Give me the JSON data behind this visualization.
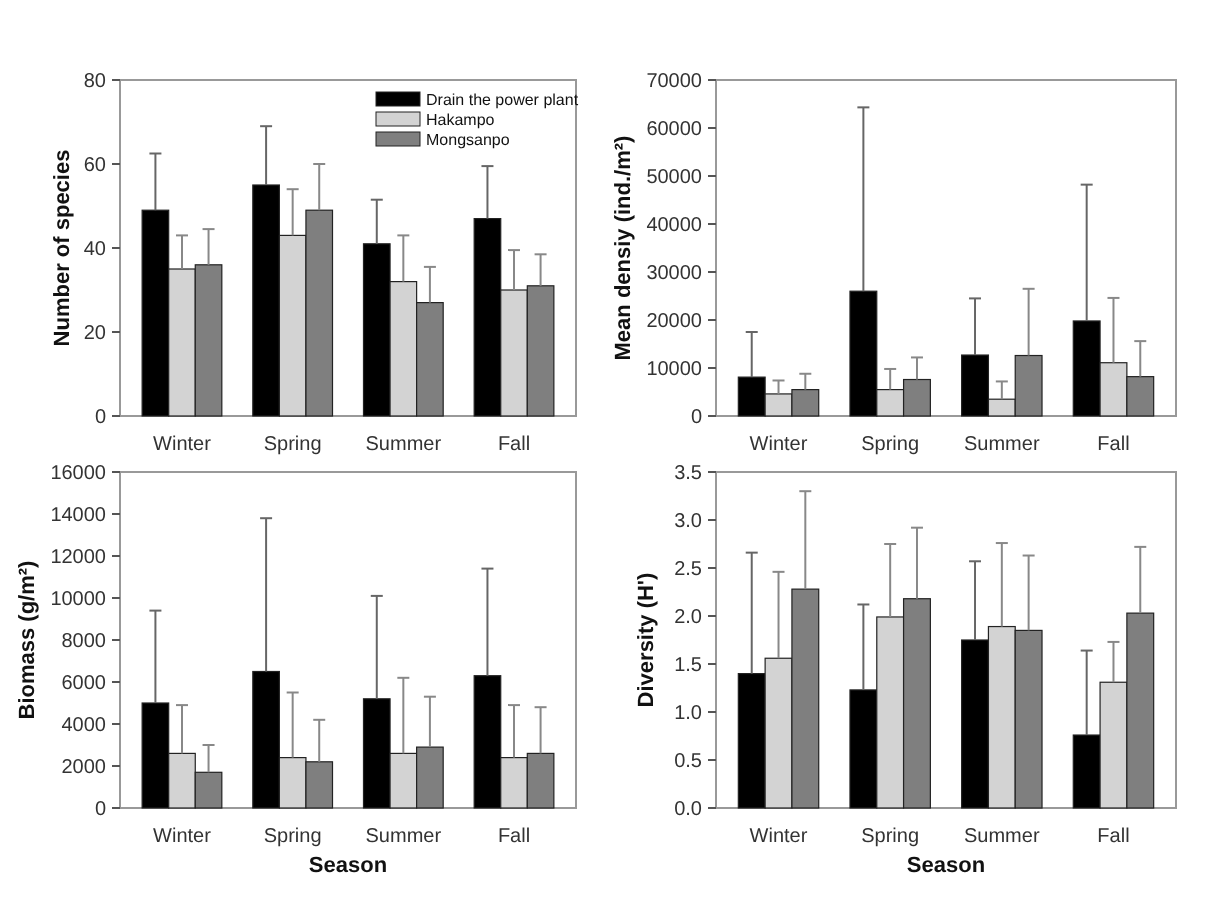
{
  "chart_data": [
    {
      "type": "bar",
      "ylabel": "Number of species",
      "categories": [
        "Winter",
        "Spring",
        "Summer",
        "Fall"
      ],
      "ylim": [
        0,
        80
      ],
      "yticks": [
        0,
        20,
        40,
        60,
        80
      ],
      "legend": "top right",
      "grid": false,
      "series": [
        {
          "name": "Drain the power plant",
          "color": "#000000",
          "values": [
            49,
            55,
            41,
            47
          ],
          "errors": [
            [
              49,
              62.5
            ],
            [
              55,
              69
            ],
            [
              41,
              51.5
            ],
            [
              47,
              59.5
            ]
          ]
        },
        {
          "name": "Hakampo",
          "color": "#d3d3d3",
          "values": [
            35,
            43,
            32,
            30
          ],
          "errors": [
            [
              35,
              43
            ],
            [
              43,
              54
            ],
            [
              32,
              43
            ],
            [
              30,
              39.5
            ]
          ]
        },
        {
          "name": "Mongsanpo",
          "color": "#7f7f7f",
          "values": [
            36,
            49,
            27,
            31
          ],
          "errors": [
            [
              36,
              44.5
            ],
            [
              49,
              60
            ],
            [
              27,
              35.5
            ],
            [
              31,
              38.5
            ]
          ]
        }
      ]
    },
    {
      "type": "bar",
      "ylabel": "Mean densiy (ind./m²)",
      "categories": [
        "Winter",
        "Spring",
        "Summer",
        "Fall"
      ],
      "ylim": [
        0,
        70000
      ],
      "yticks": [
        0,
        10000,
        20000,
        30000,
        40000,
        50000,
        60000,
        70000
      ],
      "legend": false,
      "grid": false,
      "series": [
        {
          "color": "#000000",
          "values": [
            8100,
            26000,
            12700,
            19800
          ],
          "errors": [
            [
              8100,
              17500
            ],
            [
              26000,
              64300
            ],
            [
              12700,
              24500
            ],
            [
              19800,
              48200
            ]
          ]
        },
        {
          "color": "#d3d3d3",
          "values": [
            4600,
            5500,
            3500,
            11100
          ],
          "errors": [
            [
              4600,
              7400
            ],
            [
              5500,
              9800
            ],
            [
              3500,
              7200
            ],
            [
              11100,
              24600
            ]
          ]
        },
        {
          "color": "#7f7f7f",
          "values": [
            5500,
            7600,
            12600,
            8200
          ],
          "errors": [
            [
              5500,
              8800
            ],
            [
              7600,
              12200
            ],
            [
              12600,
              26500
            ],
            [
              8200,
              15600
            ]
          ]
        }
      ]
    },
    {
      "type": "bar",
      "xlabel": "Season",
      "ylabel": "Biomass (g/m²)",
      "categories": [
        "Winter",
        "Spring",
        "Summer",
        "Fall"
      ],
      "ylim": [
        0,
        16000
      ],
      "yticks": [
        0,
        2000,
        4000,
        6000,
        8000,
        10000,
        12000,
        14000,
        16000
      ],
      "legend": false,
      "grid": false,
      "series": [
        {
          "color": "#000000",
          "values": [
            5000,
            6500,
            5200,
            6300
          ],
          "errors": [
            [
              5000,
              9400
            ],
            [
              6500,
              13800
            ],
            [
              5200,
              10100
            ],
            [
              6300,
              11400
            ]
          ]
        },
        {
          "color": "#d3d3d3",
          "values": [
            2600,
            2400,
            2600,
            2400
          ],
          "errors": [
            [
              2600,
              4900
            ],
            [
              2400,
              5500
            ],
            [
              2600,
              6200
            ],
            [
              2400,
              4900
            ]
          ]
        },
        {
          "color": "#7f7f7f",
          "values": [
            1700,
            2200,
            2900,
            2600
          ],
          "errors": [
            [
              1700,
              3000
            ],
            [
              2200,
              4200
            ],
            [
              2900,
              5300
            ],
            [
              2600,
              4800
            ]
          ]
        }
      ]
    },
    {
      "type": "bar",
      "xlabel": "Season",
      "ylabel": "Diversity (H')",
      "categories": [
        "Winter",
        "Spring",
        "Summer",
        "Fall"
      ],
      "ylim": [
        0,
        3.5
      ],
      "yticks": [
        {
          "value": 0,
          "label": "0.0"
        },
        0.5,
        {
          "value": 1,
          "label": "1.0"
        },
        1.5,
        {
          "value": 2,
          "label": "2.0"
        },
        2.5,
        {
          "value": 3,
          "label": "3.0"
        },
        3.5
      ],
      "legend": false,
      "grid": false,
      "series": [
        {
          "color": "#000000",
          "values": [
            1.4,
            1.23,
            1.75,
            0.76
          ],
          "errors": [
            [
              1.4,
              2.66
            ],
            [
              1.23,
              2.12
            ],
            [
              1.75,
              2.57
            ],
            [
              0.76,
              1.64
            ]
          ]
        },
        {
          "color": "#d3d3d3",
          "values": [
            1.56,
            1.99,
            1.89,
            1.31
          ],
          "errors": [
            [
              1.56,
              2.46
            ],
            [
              1.99,
              2.75
            ],
            [
              1.89,
              2.76
            ],
            [
              1.31,
              1.73
            ]
          ]
        },
        {
          "color": "#7f7f7f",
          "values": [
            2.28,
            2.18,
            1.85,
            2.03
          ],
          "errors": [
            [
              2.28,
              3.3
            ],
            [
              2.18,
              2.92
            ],
            [
              1.85,
              2.63
            ],
            [
              2.03,
              2.72
            ]
          ]
        }
      ]
    }
  ]
}
